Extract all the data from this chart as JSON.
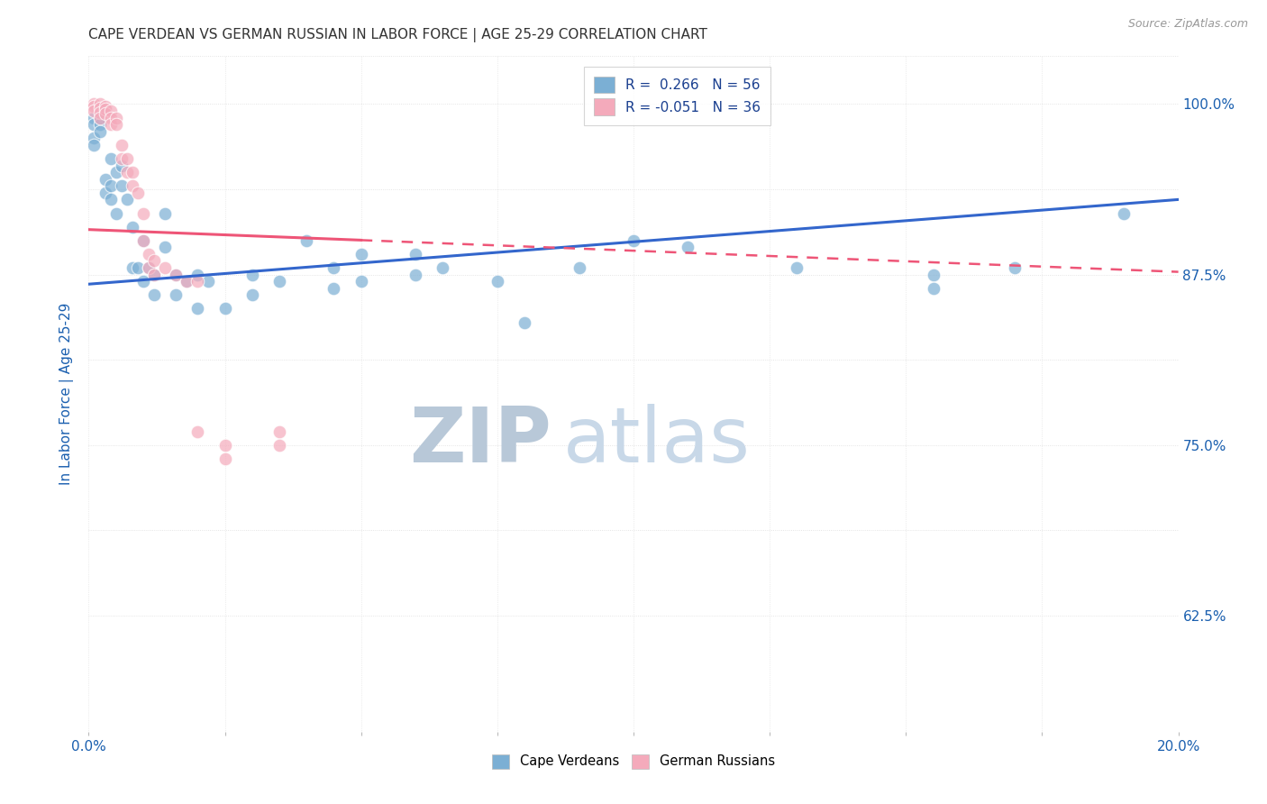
{
  "title": "CAPE VERDEAN VS GERMAN RUSSIAN IN LABOR FORCE | AGE 25-29 CORRELATION CHART",
  "source": "Source: ZipAtlas.com",
  "ylabel": "In Labor Force | Age 25-29",
  "xlim": [
    0.0,
    0.2
  ],
  "ylim": [
    0.54,
    1.035
  ],
  "xticks": [
    0.0,
    0.025,
    0.05,
    0.075,
    0.1,
    0.125,
    0.15,
    0.175,
    0.2
  ],
  "yticks": [
    0.625,
    0.75,
    0.875,
    1.0
  ],
  "blue_R": 0.266,
  "blue_N": 56,
  "pink_R": -0.051,
  "pink_N": 36,
  "blue_color": "#7BAFD4",
  "pink_color": "#F4AABB",
  "blue_scatter": [
    [
      0.001,
      0.99
    ],
    [
      0.001,
      0.985
    ],
    [
      0.001,
      0.975
    ],
    [
      0.001,
      0.97
    ],
    [
      0.002,
      0.995
    ],
    [
      0.002,
      0.99
    ],
    [
      0.002,
      0.985
    ],
    [
      0.002,
      0.98
    ],
    [
      0.003,
      0.945
    ],
    [
      0.003,
      0.935
    ],
    [
      0.004,
      0.96
    ],
    [
      0.004,
      0.94
    ],
    [
      0.004,
      0.93
    ],
    [
      0.005,
      0.95
    ],
    [
      0.005,
      0.92
    ],
    [
      0.006,
      0.955
    ],
    [
      0.006,
      0.94
    ],
    [
      0.007,
      0.93
    ],
    [
      0.008,
      0.91
    ],
    [
      0.008,
      0.88
    ],
    [
      0.009,
      0.88
    ],
    [
      0.01,
      0.9
    ],
    [
      0.01,
      0.87
    ],
    [
      0.011,
      0.88
    ],
    [
      0.012,
      0.875
    ],
    [
      0.012,
      0.86
    ],
    [
      0.014,
      0.92
    ],
    [
      0.014,
      0.895
    ],
    [
      0.016,
      0.875
    ],
    [
      0.016,
      0.86
    ],
    [
      0.018,
      0.87
    ],
    [
      0.02,
      0.875
    ],
    [
      0.02,
      0.85
    ],
    [
      0.022,
      0.87
    ],
    [
      0.025,
      0.85
    ],
    [
      0.03,
      0.875
    ],
    [
      0.03,
      0.86
    ],
    [
      0.035,
      0.87
    ],
    [
      0.04,
      0.9
    ],
    [
      0.045,
      0.88
    ],
    [
      0.045,
      0.865
    ],
    [
      0.05,
      0.89
    ],
    [
      0.05,
      0.87
    ],
    [
      0.06,
      0.89
    ],
    [
      0.06,
      0.875
    ],
    [
      0.065,
      0.88
    ],
    [
      0.075,
      0.87
    ],
    [
      0.08,
      0.84
    ],
    [
      0.09,
      0.88
    ],
    [
      0.1,
      0.9
    ],
    [
      0.11,
      0.895
    ],
    [
      0.13,
      0.88
    ],
    [
      0.155,
      0.875
    ],
    [
      0.155,
      0.865
    ],
    [
      0.17,
      0.88
    ],
    [
      0.19,
      0.92
    ]
  ],
  "pink_scatter": [
    [
      0.001,
      1.0
    ],
    [
      0.001,
      0.998
    ],
    [
      0.001,
      0.995
    ],
    [
      0.002,
      1.0
    ],
    [
      0.002,
      0.997
    ],
    [
      0.002,
      0.994
    ],
    [
      0.002,
      0.99
    ],
    [
      0.003,
      0.998
    ],
    [
      0.003,
      0.996
    ],
    [
      0.003,
      0.993
    ],
    [
      0.004,
      0.995
    ],
    [
      0.004,
      0.99
    ],
    [
      0.004,
      0.985
    ],
    [
      0.005,
      0.99
    ],
    [
      0.005,
      0.985
    ],
    [
      0.006,
      0.97
    ],
    [
      0.006,
      0.96
    ],
    [
      0.007,
      0.96
    ],
    [
      0.007,
      0.95
    ],
    [
      0.008,
      0.95
    ],
    [
      0.008,
      0.94
    ],
    [
      0.009,
      0.935
    ],
    [
      0.01,
      0.92
    ],
    [
      0.01,
      0.9
    ],
    [
      0.011,
      0.89
    ],
    [
      0.011,
      0.88
    ],
    [
      0.012,
      0.885
    ],
    [
      0.012,
      0.875
    ],
    [
      0.014,
      0.88
    ],
    [
      0.016,
      0.875
    ],
    [
      0.018,
      0.87
    ],
    [
      0.02,
      0.87
    ],
    [
      0.02,
      0.76
    ],
    [
      0.025,
      0.75
    ],
    [
      0.025,
      0.74
    ],
    [
      0.035,
      0.76
    ],
    [
      0.035,
      0.75
    ]
  ],
  "watermark_zip": "ZIP",
  "watermark_atlas": "atlas",
  "watermark_color": "#C8D8E8",
  "legend_R_color": "#1A3F8F",
  "grid_color": "#DDDDDD",
  "title_color": "#333333",
  "axis_label_color": "#1A5FAF",
  "tick_color": "#1A5FAF",
  "blue_line_color": "#3366CC",
  "pink_line_color": "#EE5577"
}
